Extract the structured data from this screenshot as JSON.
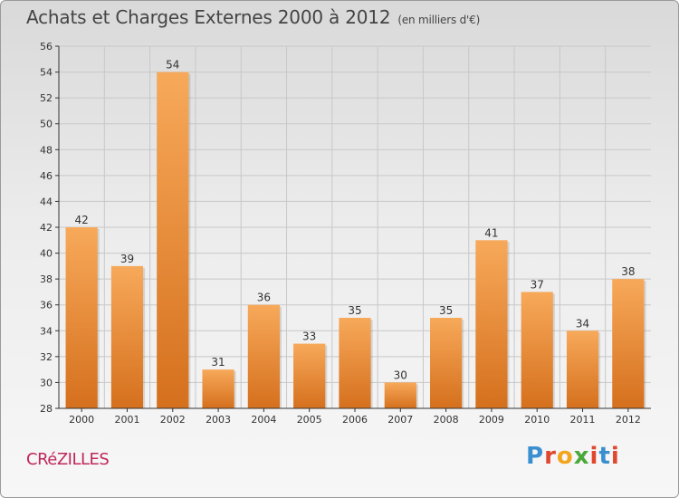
{
  "title": "Achats et Charges Externes 2000 à 2012",
  "subtitle": "(en milliers d'€)",
  "commune": "CRéZILLES",
  "logo": {
    "letters": [
      "P",
      "r",
      "o",
      "x",
      "i",
      "t",
      "i"
    ],
    "colors": [
      "#3a8fd1",
      "#e0472f",
      "#f2a51f",
      "#4aa93a",
      "#e0472f",
      "#3a8fd1",
      "#e0472f"
    ]
  },
  "chart_data": {
    "type": "bar",
    "categories": [
      "2000",
      "2001",
      "2002",
      "2003",
      "2004",
      "2005",
      "2006",
      "2007",
      "2008",
      "2009",
      "2010",
      "2011",
      "2012"
    ],
    "values": [
      42,
      39,
      54,
      31,
      36,
      33,
      35,
      30,
      35,
      41,
      37,
      34,
      38
    ],
    "ylim": [
      28,
      56
    ],
    "yticks": [
      28,
      30,
      32,
      34,
      36,
      38,
      40,
      42,
      44,
      46,
      48,
      50,
      52,
      54,
      56
    ],
    "grid": true,
    "colors": {
      "bar_top": "#f7a95a",
      "bar_bottom": "#d5701d",
      "axis": "#333333",
      "grid": "#c8c8c8"
    }
  }
}
